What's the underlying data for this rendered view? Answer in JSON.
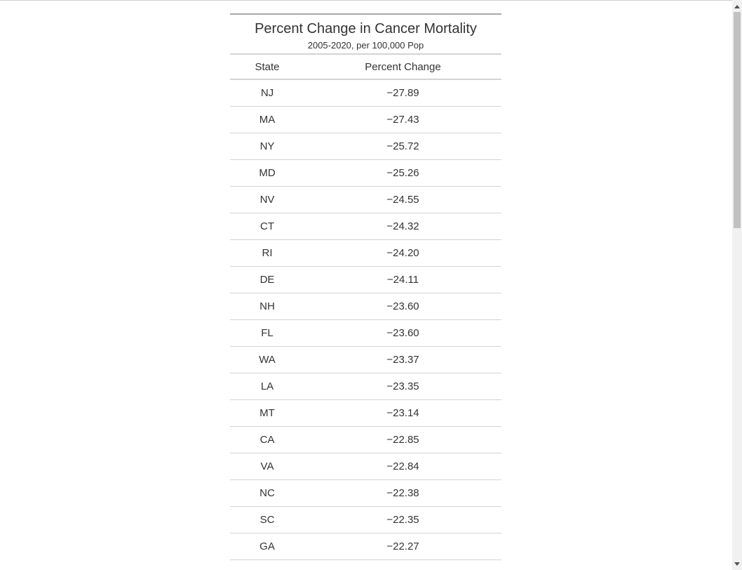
{
  "table": {
    "title": "Percent Change in Cancer Mortality",
    "subtitle": "2005-2020, per 100,000 Pop",
    "columns": {
      "state": "State",
      "change": "Percent Change"
    },
    "rows": [
      {
        "state": "NJ",
        "change": "−27.89"
      },
      {
        "state": "MA",
        "change": "−27.43"
      },
      {
        "state": "NY",
        "change": "−25.72"
      },
      {
        "state": "MD",
        "change": "−25.26"
      },
      {
        "state": "NV",
        "change": "−24.55"
      },
      {
        "state": "CT",
        "change": "−24.32"
      },
      {
        "state": "RI",
        "change": "−24.20"
      },
      {
        "state": "DE",
        "change": "−24.11"
      },
      {
        "state": "NH",
        "change": "−23.60"
      },
      {
        "state": "FL",
        "change": "−23.60"
      },
      {
        "state": "WA",
        "change": "−23.37"
      },
      {
        "state": "LA",
        "change": "−23.35"
      },
      {
        "state": "MT",
        "change": "−23.14"
      },
      {
        "state": "CA",
        "change": "−22.85"
      },
      {
        "state": "VA",
        "change": "−22.84"
      },
      {
        "state": "NC",
        "change": "−22.38"
      },
      {
        "state": "SC",
        "change": "−22.35"
      },
      {
        "state": "GA",
        "change": "−22.27"
      }
    ]
  },
  "scrollbar": {
    "up_icon": "chevron-up-icon",
    "down_icon": "chevron-down-icon"
  }
}
